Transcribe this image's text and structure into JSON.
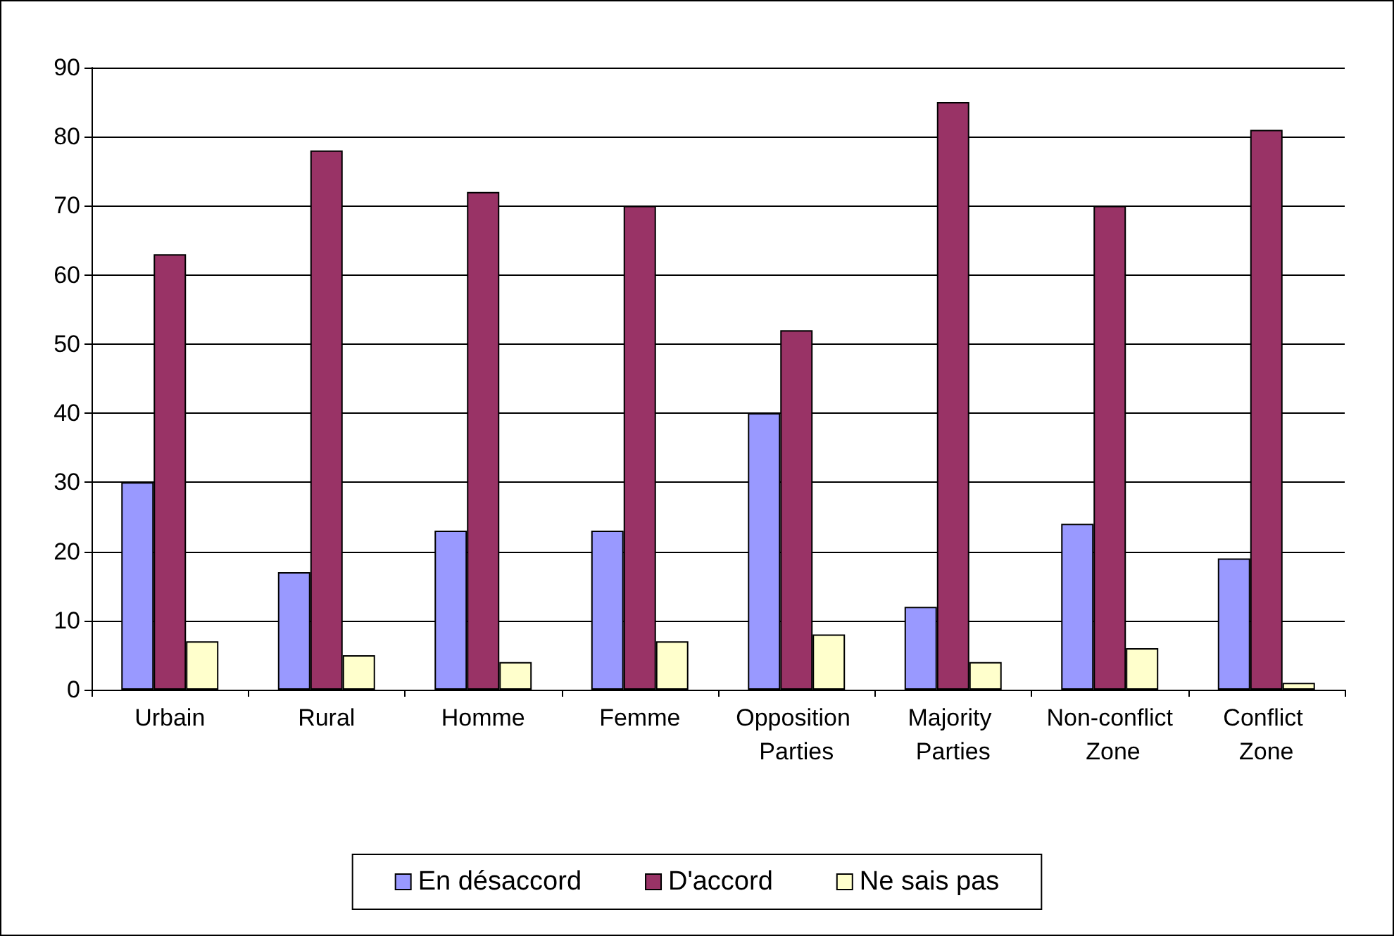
{
  "chart_data": {
    "type": "bar",
    "categories": [
      "Urbain",
      "Rural",
      "Homme",
      "Femme",
      "Opposition Parties",
      "Majority Parties",
      "Non-conflict Zone",
      "Conflict Zone"
    ],
    "series": [
      {
        "name": "En désaccord",
        "color": "#9999ff",
        "values": [
          30,
          17,
          23,
          23,
          40,
          12,
          24,
          19
        ]
      },
      {
        "name": "D'accord",
        "color": "#993366",
        "values": [
          63,
          78,
          72,
          70,
          52,
          85,
          70,
          81
        ]
      },
      {
        "name": "Ne sais pas",
        "color": "#ffffcc",
        "values": [
          7,
          5,
          4,
          7,
          8,
          4,
          6,
          1
        ]
      }
    ],
    "ylim": [
      0,
      90
    ],
    "yticks": [
      0,
      10,
      20,
      30,
      40,
      50,
      60,
      70,
      80,
      90
    ],
    "grid": "y",
    "legend": "bottom"
  }
}
